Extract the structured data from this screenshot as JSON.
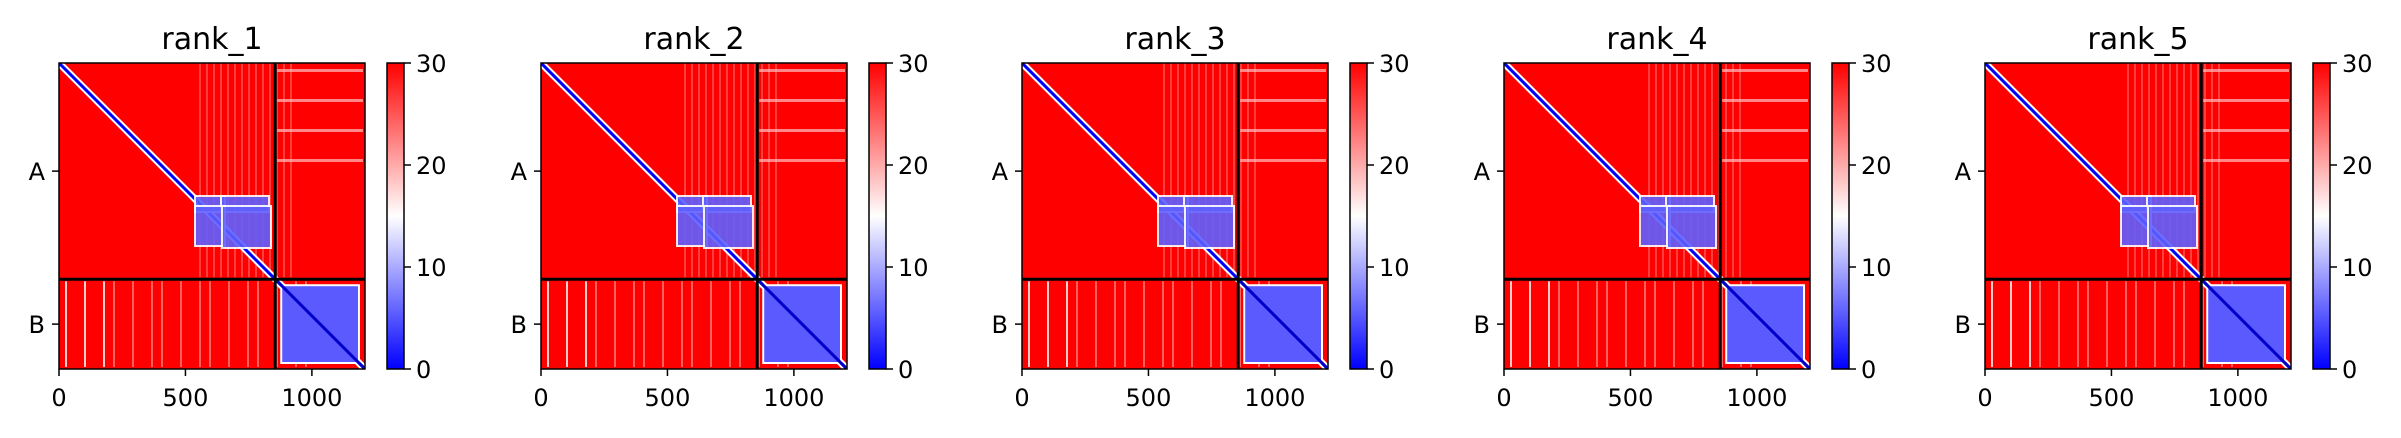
{
  "chart_data": [
    {
      "type": "heatmap",
      "title": "rank_1",
      "xticks": [
        0,
        500,
        1000
      ],
      "yticks": [
        "A",
        "B"
      ],
      "chain_boundary": 855,
      "x_range": [
        0,
        1210
      ],
      "colorbar": {
        "min": 0,
        "max": 30,
        "ticks": [
          0,
          10,
          20,
          30
        ],
        "colormap": "bwr"
      }
    },
    {
      "type": "heatmap",
      "title": "rank_2",
      "xticks": [
        0,
        500,
        1000
      ],
      "yticks": [
        "A",
        "B"
      ],
      "chain_boundary": 855,
      "x_range": [
        0,
        1210
      ],
      "colorbar": {
        "min": 0,
        "max": 30,
        "ticks": [
          0,
          10,
          20,
          30
        ],
        "colormap": "bwr"
      }
    },
    {
      "type": "heatmap",
      "title": "rank_3",
      "xticks": [
        0,
        500,
        1000
      ],
      "yticks": [
        "A",
        "B"
      ],
      "chain_boundary": 855,
      "x_range": [
        0,
        1210
      ],
      "colorbar": {
        "min": 0,
        "max": 30,
        "ticks": [
          0,
          10,
          20,
          30
        ],
        "colormap": "bwr"
      }
    },
    {
      "type": "heatmap",
      "title": "rank_4",
      "xticks": [
        0,
        500,
        1000
      ],
      "yticks": [
        "A",
        "B"
      ],
      "chain_boundary": 855,
      "x_range": [
        0,
        1210
      ],
      "colorbar": {
        "min": 0,
        "max": 30,
        "ticks": [
          0,
          10,
          20,
          30
        ],
        "colormap": "bwr"
      }
    },
    {
      "type": "heatmap",
      "title": "rank_5",
      "xticks": [
        0,
        500,
        1000
      ],
      "yticks": [
        "A",
        "B"
      ],
      "chain_boundary": 855,
      "x_range": [
        0,
        1210
      ],
      "colorbar": {
        "min": 0,
        "max": 30,
        "ticks": [
          0,
          10,
          20,
          30
        ],
        "colormap": "bwr"
      }
    }
  ],
  "colors": {
    "high": "#ff0000",
    "mid": "#ffffff",
    "low": "#0000ff",
    "frame": "#000000"
  }
}
